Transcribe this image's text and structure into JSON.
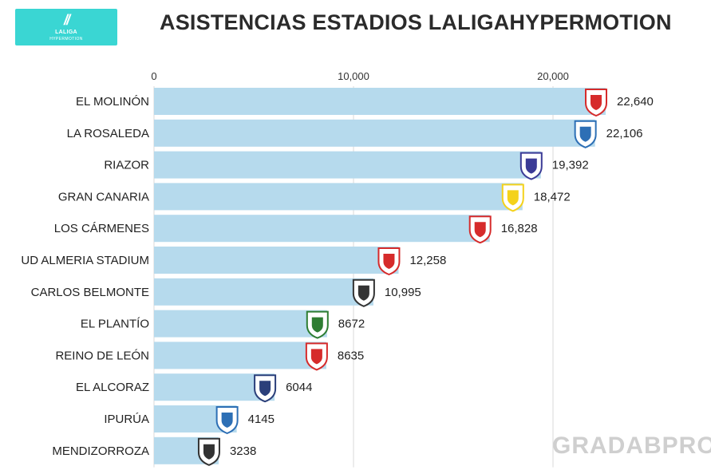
{
  "header": {
    "title": "ASISTENCIAS ESTADIOS LALIGAHYPERMOTION",
    "logo_text_line1": "LALIGA",
    "logo_text_line2": "HYPERMOTION",
    "logo_color": "#3ad6d3"
  },
  "watermark": "GRADABPRO",
  "chart_data": {
    "type": "bar",
    "orientation": "horizontal",
    "title": "ASISTENCIAS ESTADIOS LALIGAHYPERMOTION",
    "categories": [
      "EL MOLINÓN",
      "LA ROSALEDA",
      "RIAZOR",
      "GRAN CANARIA",
      "LOS CÁRMENES",
      "UD ALMERIA STADIUM",
      "CARLOS BELMONTE",
      "EL PLANTÍO",
      "REINO DE LEÓN",
      "EL ALCORAZ",
      "IPURÚA",
      "MENDIZORROZA"
    ],
    "values": [
      22640,
      22106,
      19392,
      18472,
      16828,
      12258,
      10995,
      8672,
      8635,
      6044,
      4145,
      3238
    ],
    "value_labels": [
      "22,640",
      "22,106",
      "19,392",
      "18,472",
      "16,828",
      "12,258",
      "10,995",
      "8672",
      "8635",
      "6044",
      "4145",
      "3238"
    ],
    "xticks": [
      0,
      10000,
      20000
    ],
    "xtick_labels": [
      "0",
      "10,000",
      "20,000"
    ],
    "xlim": [
      0,
      26000
    ],
    "axis_position": "top",
    "grid": true,
    "bar_color": "#b6daed",
    "grid_color": "#d9d9d9",
    "badge_icons": [
      "sporting-gijon-crest-icon",
      "malaga-crest-icon",
      "deportivo-crest-icon",
      "las-palmas-crest-icon",
      "granada-crest-icon",
      "almeria-crest-icon",
      "albacete-crest-icon",
      "burgos-crest-icon",
      "leonesa-crest-icon",
      "huesca-crest-icon",
      "eibar-crest-icon",
      "mirandes-crest-icon"
    ],
    "badge_colors": [
      "#d62b2b",
      "#2d6fb5",
      "#3b3b96",
      "#f4d21b",
      "#d62b2b",
      "#d62b2b",
      "#333333",
      "#2e7d32",
      "#d62b2b",
      "#2b3f7a",
      "#2d6fb5",
      "#333333"
    ]
  }
}
